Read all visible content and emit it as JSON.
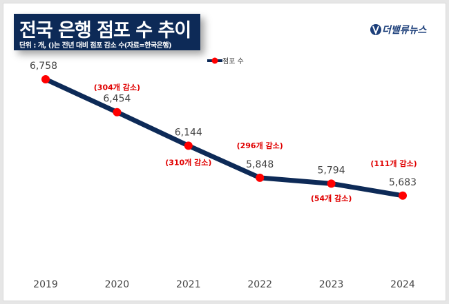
{
  "header": {
    "title": "전국 은행 점포 수 추이",
    "subtitle": "단위 : 개, ()는 전년 대비 점포 감소 수(자료=한국은행)",
    "logo_text": "더밸류뉴스"
  },
  "chart_data": {
    "type": "line",
    "categories": [
      "2019",
      "2020",
      "2021",
      "2022",
      "2023",
      "2024"
    ],
    "series": [
      {
        "name": "점포 수",
        "values": [
          6758,
          6454,
          6144,
          5848,
          5794,
          5683
        ],
        "data_labels": [
          "6,758",
          "6,454",
          "6,144",
          "5,848",
          "5,794",
          "5,683"
        ]
      }
    ],
    "annotations": [
      "",
      "(304개 감소)",
      "(310개 감소)",
      "(296개 감소)",
      "(54개 감소)",
      "(111개 감소)"
    ],
    "ylim": [
      5000,
      7000
    ],
    "grid": false,
    "legend": "top-center",
    "colors": {
      "line": "#0d2a57",
      "marker": "#ff0000",
      "annotation": "#e00000",
      "title_bg": "#0d2a57"
    }
  }
}
